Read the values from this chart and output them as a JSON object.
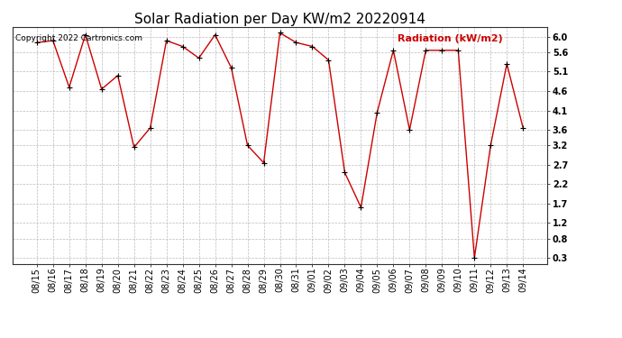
{
  "title": "Solar Radiation per Day KW/m2 20220914",
  "copyright_text": "Copyright 2022 Cartronics.com",
  "legend_label": "Radiation (kW/m2)",
  "labels": [
    "08/15",
    "08/16",
    "08/17",
    "08/18",
    "08/19",
    "08/20",
    "08/21",
    "08/22",
    "08/23",
    "08/24",
    "08/25",
    "08/26",
    "08/27",
    "08/28",
    "08/29",
    "08/30",
    "08/31",
    "09/01",
    "09/02",
    "09/03",
    "09/04",
    "09/05",
    "09/06",
    "09/07",
    "09/08",
    "09/09",
    "09/10",
    "09/11",
    "09/12",
    "09/13",
    "09/14"
  ],
  "values": [
    5.85,
    5.9,
    4.7,
    6.05,
    4.65,
    5.0,
    3.15,
    3.65,
    5.9,
    5.75,
    5.45,
    6.05,
    5.2,
    3.2,
    2.75,
    6.1,
    5.85,
    5.75,
    5.4,
    2.5,
    1.6,
    4.05,
    5.65,
    3.6,
    5.65,
    5.65,
    5.65,
    0.3,
    3.2,
    5.3,
    3.65
  ],
  "line_color": "#cc0000",
  "marker_color": "#000000",
  "bg_color": "#ffffff",
  "grid_color": "#bbbbbb",
  "title_color": "#000000",
  "copyright_color": "#000000",
  "legend_color": "#cc0000",
  "ylim": [
    0.15,
    6.25
  ],
  "yticks": [
    0.3,
    0.8,
    1.2,
    1.7,
    2.2,
    2.7,
    3.2,
    3.6,
    4.1,
    4.6,
    5.1,
    5.6,
    6.0
  ],
  "title_fontsize": 11,
  "legend_fontsize": 8,
  "tick_fontsize": 7,
  "copyright_fontsize": 6.5
}
